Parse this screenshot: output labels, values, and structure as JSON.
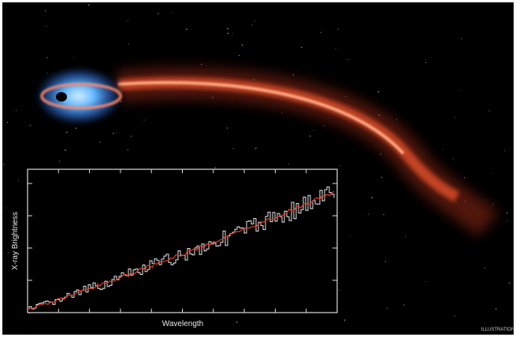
{
  "image": {
    "y_axis_label": "X-ray Brightness",
    "x_axis_label": "Wavelength",
    "credit": "ILLUSTRATION"
  }
}
